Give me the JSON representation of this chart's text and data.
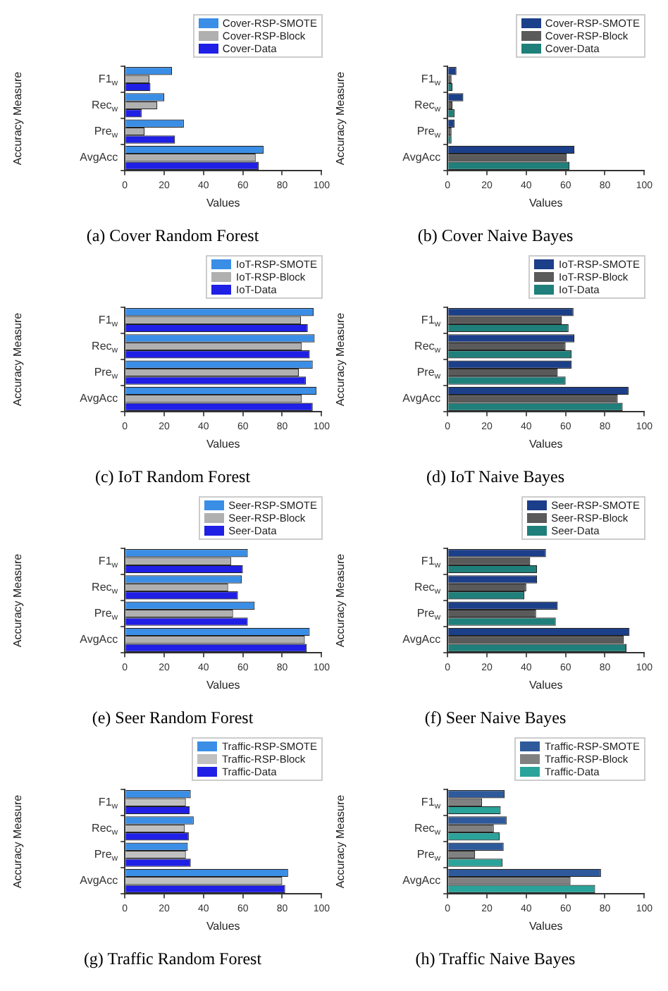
{
  "chart_data": [
    {
      "type": "bar",
      "orientation": "horizontal",
      "title": "(a) Cover Random Forest",
      "xlabel": "Values",
      "ylabel": "Accuracy Measure",
      "categories": [
        "F1$_{w}$",
        "Rec$_{w}$",
        "Pre$_{w}$",
        "AvgAcc"
      ],
      "xlim": [
        0,
        100
      ],
      "xticks": [
        0,
        20,
        40,
        60,
        80,
        100
      ],
      "legend": "top right",
      "series": [
        {
          "name": "Cover-RSP-SMOTE",
          "color": "#3a8ee6",
          "values": [
            24,
            20,
            30,
            70.5
          ]
        },
        {
          "name": "Cover-RSP-Block",
          "color": "#b0b0b0",
          "values": [
            12.5,
            16.5,
            10,
            66.5
          ]
        },
        {
          "name": "Cover-Data",
          "color": "#1f1fe6",
          "values": [
            13,
            8.5,
            25.5,
            68
          ]
        }
      ]
    },
    {
      "type": "bar",
      "orientation": "horizontal",
      "title": "(b) Cover Naive Bayes",
      "xlabel": "Values",
      "ylabel": "Accuracy Measure",
      "categories": [
        "F1$_{w}$",
        "Rec$_{w}$",
        "Pre$_{w}$",
        "AvgAcc"
      ],
      "xlim": [
        0,
        100
      ],
      "xticks": [
        0,
        20,
        40,
        60,
        80,
        100
      ],
      "legend": "top right",
      "series": [
        {
          "name": "Cover-RSP-SMOTE",
          "color": "#1c3f8a",
          "values": [
            4.5,
            8,
            3.5,
            64.5
          ]
        },
        {
          "name": "Cover-RSP-Block",
          "color": "#5a5a5a",
          "values": [
            2,
            2.5,
            2,
            60.5
          ]
        },
        {
          "name": "Cover-Data",
          "color": "#1f7f7a",
          "values": [
            2.5,
            3.5,
            2,
            62
          ]
        }
      ]
    },
    {
      "type": "bar",
      "orientation": "horizontal",
      "title": "(c) IoT Random Forest",
      "xlabel": "Values",
      "ylabel": "Accuracy Measure",
      "categories": [
        "F1$_{w}$",
        "Rec$_{w}$",
        "Pre$_{w}$",
        "AvgAcc"
      ],
      "xlim": [
        0,
        100
      ],
      "xticks": [
        0,
        20,
        40,
        60,
        80,
        100
      ],
      "legend": "top right",
      "series": [
        {
          "name": "IoT-RSP-SMOTE",
          "color": "#3a8ee6",
          "values": [
            96,
            96.5,
            95.5,
            97.5
          ]
        },
        {
          "name": "IoT-RSP-Block",
          "color": "#b0b0b0",
          "values": [
            89.5,
            90,
            88.5,
            90
          ]
        },
        {
          "name": "IoT-Data",
          "color": "#1f1fe6",
          "values": [
            93,
            94,
            92,
            95.5
          ]
        }
      ]
    },
    {
      "type": "bar",
      "orientation": "horizontal",
      "title": "(d) IoT Naive Bayes",
      "xlabel": "Values",
      "ylabel": "Accuracy Measure",
      "categories": [
        "F1$_{w}$",
        "Rec$_{w}$",
        "Pre$_{w}$",
        "AvgAcc"
      ],
      "xlim": [
        0,
        100
      ],
      "xticks": [
        0,
        20,
        40,
        60,
        80,
        100
      ],
      "legend": "top right",
      "series": [
        {
          "name": "IoT-RSP-SMOTE",
          "color": "#1c3f8a",
          "values": [
            64,
            64.5,
            63,
            92
          ]
        },
        {
          "name": "IoT-RSP-Block",
          "color": "#5a5a5a",
          "values": [
            58,
            60,
            56,
            86.5
          ]
        },
        {
          "name": "IoT-Data",
          "color": "#1f7f7a",
          "values": [
            61.5,
            63,
            60,
            89
          ]
        }
      ]
    },
    {
      "type": "bar",
      "orientation": "horizontal",
      "title": "(e) Seer Random Forest",
      "xlabel": "Values",
      "ylabel": "Accuracy Measure",
      "categories": [
        "F1$_{w}$",
        "Rec$_{w}$",
        "Pre$_{w}$",
        "AvgAcc"
      ],
      "xlim": [
        0,
        100
      ],
      "xticks": [
        0,
        20,
        40,
        60,
        80,
        100
      ],
      "legend": "top right",
      "series": [
        {
          "name": "Seer-RSP-SMOTE",
          "color": "#3a8ee6",
          "values": [
            62.5,
            59.5,
            66,
            94
          ]
        },
        {
          "name": "Seer-RSP-Block",
          "color": "#b0b0b0",
          "values": [
            54,
            52.5,
            55,
            91.5
          ]
        },
        {
          "name": "Seer-Data",
          "color": "#1f1fe6",
          "values": [
            60,
            57.5,
            62.5,
            92.5
          ]
        }
      ]
    },
    {
      "type": "bar",
      "orientation": "horizontal",
      "title": "(f) Seer Naive Bayes",
      "xlabel": "Values",
      "ylabel": "Accuracy Measure",
      "categories": [
        "F1$_{w}$",
        "Rec$_{w}$",
        "Pre$_{w}$",
        "AvgAcc"
      ],
      "xlim": [
        0,
        100
      ],
      "xticks": [
        0,
        20,
        40,
        60,
        80,
        100
      ],
      "legend": "top right",
      "series": [
        {
          "name": "Seer-RSP-SMOTE",
          "color": "#1c3f8a",
          "values": [
            50,
            45.5,
            56,
            92.5
          ]
        },
        {
          "name": "Seer-RSP-Block",
          "color": "#5a5a5a",
          "values": [
            42,
            40,
            45,
            89.5
          ]
        },
        {
          "name": "Seer-Data",
          "color": "#1f7f7a",
          "values": [
            45.5,
            39,
            55,
            91
          ]
        }
      ]
    },
    {
      "type": "bar",
      "orientation": "horizontal",
      "title": "(g) Traffic Random Forest",
      "xlabel": "Values",
      "ylabel": "Accuracy Measure",
      "categories": [
        "F1$_{w}$",
        "Rec$_{w}$",
        "Pre$_{w}$",
        "AvgAcc"
      ],
      "xlim": [
        0,
        100
      ],
      "xticks": [
        0,
        20,
        40,
        60,
        80,
        100
      ],
      "legend": "top right",
      "series": [
        {
          "name": "Traffic-RSP-SMOTE",
          "color": "#3a8ee6",
          "values": [
            33.5,
            35,
            32,
            83
          ]
        },
        {
          "name": "Traffic-RSP-Block",
          "color": "#c0c0c0",
          "values": [
            31,
            30.5,
            31,
            80
          ]
        },
        {
          "name": "Traffic-Data",
          "color": "#1f1fe6",
          "values": [
            33,
            32.5,
            33.5,
            81.5
          ]
        }
      ]
    },
    {
      "type": "bar",
      "orientation": "horizontal",
      "title": "(h) Traffic Naive Bayes",
      "xlabel": "Values",
      "ylabel": "Accuracy Measure",
      "categories": [
        "F1$_{w}$",
        "Rec$_{w}$",
        "Pre$_{w}$",
        "AvgAcc"
      ],
      "xlim": [
        0,
        100
      ],
      "xticks": [
        0,
        20,
        40,
        60,
        80,
        100
      ],
      "legend": "top right",
      "series": [
        {
          "name": "Traffic-RSP-SMOTE",
          "color": "#2e5a9c",
          "values": [
            29,
            30,
            28.5,
            78
          ]
        },
        {
          "name": "Traffic-RSP-Block",
          "color": "#808080",
          "values": [
            17.5,
            23.5,
            14,
            62.5
          ]
        },
        {
          "name": "Traffic-Data",
          "color": "#2aa39a",
          "values": [
            27,
            26.5,
            28,
            75
          ]
        }
      ]
    }
  ]
}
